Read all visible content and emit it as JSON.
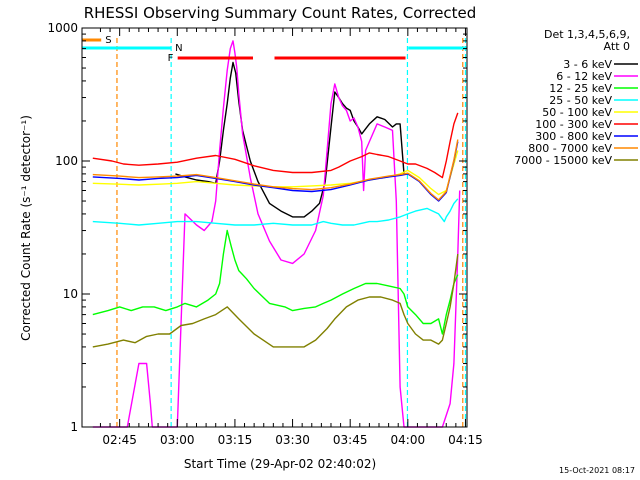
{
  "chart_data": {
    "type": "line",
    "title": "RHESSI Observing Summary Count Rates, Corrected",
    "xlabel": "Start Time (29-Apr-02 02:40:02)",
    "ylabel": "Corrected Count Rate (s⁻¹ detector⁻¹)",
    "y_scale": "log",
    "ylim": [
      1,
      1000
    ],
    "xlim_minutes": [
      -4.8,
      95.4
    ],
    "x_ticks": [
      {
        "m": 5,
        "label": "02:45"
      },
      {
        "m": 20,
        "label": "03:00"
      },
      {
        "m": 35,
        "label": "03:15"
      },
      {
        "m": 50,
        "label": "03:30"
      },
      {
        "m": 65,
        "label": "03:45"
      },
      {
        "m": 80,
        "label": "04:00"
      },
      {
        "m": 95,
        "label": "04:15"
      }
    ],
    "y_ticks": [
      {
        "v": 1,
        "label": "1"
      },
      {
        "v": 10,
        "label": "10"
      },
      {
        "v": 100,
        "label": "100"
      },
      {
        "v": 1000,
        "label": "1000"
      }
    ],
    "legend_header": [
      "Det 1,3,4,5,6,9,",
      "Att 0"
    ],
    "legend_position": "right",
    "timestamp": "15-Oct-2021 08:17",
    "series": [
      {
        "name": "3 - 6 keV",
        "color": "#000000",
        "x": [
          19.5,
          22,
          25,
          28,
          30,
          31,
          32,
          33,
          33.8,
          34.5,
          35.2,
          36,
          37,
          39,
          41,
          44,
          47,
          50,
          53,
          55,
          57,
          58.5,
          60,
          61,
          62,
          63,
          64,
          65,
          66,
          67,
          68,
          70,
          72,
          74,
          76,
          77,
          78,
          79
        ],
        "y": [
          80,
          76,
          72,
          70,
          68,
          100,
          170,
          270,
          420,
          550,
          460,
          280,
          170,
          100,
          70,
          48,
          42,
          38,
          38,
          42,
          48,
          70,
          180,
          330,
          300,
          270,
          250,
          240,
          200,
          180,
          160,
          190,
          215,
          205,
          180,
          190,
          190,
          80
        ]
      },
      {
        "name": "6 - 12 keV",
        "color": "#ff00ff",
        "x": [
          -2,
          4.5,
          7,
          10,
          12,
          13,
          13.5,
          14,
          17,
          20,
          22,
          25,
          27,
          29,
          30,
          31,
          32,
          33,
          33.8,
          34.5,
          35,
          35.5,
          36,
          37,
          39,
          41,
          44,
          47,
          50,
          53,
          56,
          58,
          59,
          60,
          61,
          62,
          63,
          64,
          65,
          66,
          67,
          68,
          68.5,
          69,
          70,
          72,
          74,
          76,
          77,
          78,
          79,
          80,
          86,
          89,
          91,
          92,
          93,
          93.5
        ],
        "y": [
          1,
          1,
          1,
          3,
          3,
          1.5,
          1,
          1,
          1,
          1,
          40,
          33,
          30,
          35,
          50,
          120,
          250,
          480,
          700,
          800,
          650,
          500,
          320,
          160,
          75,
          40,
          25,
          18,
          17,
          20,
          30,
          55,
          120,
          270,
          380,
          300,
          260,
          240,
          200,
          210,
          180,
          140,
          60,
          120,
          140,
          190,
          180,
          170,
          50,
          2,
          1,
          1,
          1,
          1,
          1.5,
          3,
          20,
          60
        ]
      },
      {
        "name": "12 - 25 keV",
        "color": "#00ff00",
        "x": [
          -2,
          2,
          5,
          8,
          11,
          14,
          17,
          20,
          22,
          25,
          28,
          30,
          31,
          32,
          33,
          34,
          35,
          36,
          37,
          38,
          40,
          44,
          48,
          50,
          53,
          56,
          58,
          60,
          63,
          66,
          69,
          72,
          75,
          78,
          79,
          80,
          82,
          84,
          86,
          88,
          89,
          90,
          91,
          92,
          93
        ],
        "y": [
          7,
          7.5,
          8,
          7.5,
          8,
          8,
          7.5,
          8,
          8.5,
          8,
          9,
          10,
          12,
          20,
          30,
          23,
          18,
          15,
          14,
          13,
          11,
          8.5,
          8,
          7.5,
          7.8,
          8,
          8.5,
          9,
          10,
          11,
          12,
          12,
          11.5,
          11,
          10,
          8,
          7,
          6,
          6,
          6.5,
          5,
          7,
          9,
          12,
          14
        ]
      },
      {
        "name": "25 - 50 keV",
        "color": "#00ffff",
        "x": [
          -2,
          5,
          10,
          15,
          20,
          25,
          30,
          35,
          40,
          45,
          50,
          55,
          58,
          60,
          63,
          66,
          68,
          70,
          72,
          75,
          78,
          80,
          82,
          85,
          88,
          89.5,
          90,
          91,
          92,
          93
        ],
        "y": [
          35,
          34,
          33,
          34,
          35,
          35,
          34,
          33,
          33,
          34,
          33,
          33,
          35,
          34,
          33,
          33,
          34,
          35,
          35,
          36,
          38,
          40,
          42,
          44,
          40,
          35,
          38,
          42,
          48,
          52
        ]
      },
      {
        "name": "50 - 100 keV",
        "color": "#ffff00",
        "x": [
          -2,
          4,
          10,
          16,
          20,
          25,
          30,
          35,
          40,
          45,
          50,
          55,
          60,
          65,
          70,
          75,
          78,
          80,
          83,
          86,
          88,
          90,
          92,
          93
        ],
        "y": [
          68,
          67,
          66,
          67,
          68,
          70,
          68,
          66,
          65,
          64,
          64,
          65,
          66,
          68,
          72,
          76,
          80,
          85,
          75,
          62,
          56,
          60,
          95,
          120
        ]
      },
      {
        "name": "100 - 300 keV",
        "color": "#ff0000",
        "x": [
          -2,
          3,
          6,
          10,
          15,
          20,
          25,
          30,
          35,
          40,
          45,
          50,
          55,
          60,
          62,
          65,
          68,
          70,
          72,
          75,
          78,
          80,
          82,
          85,
          87,
          89,
          90,
          91,
          92,
          93
        ],
        "y": [
          105,
          100,
          95,
          93,
          95,
          98,
          105,
          110,
          103,
          92,
          85,
          82,
          82,
          85,
          90,
          100,
          108,
          115,
          112,
          108,
          100,
          95,
          95,
          88,
          82,
          75,
          100,
          140,
          190,
          230
        ]
      },
      {
        "name": "300 - 800 keV",
        "color": "#0000ff",
        "x": [
          -2,
          5,
          10,
          15,
          20,
          25,
          30,
          35,
          40,
          45,
          50,
          55,
          60,
          65,
          70,
          75,
          78,
          80,
          83,
          86,
          88,
          90,
          92,
          93
        ],
        "y": [
          76,
          74,
          72,
          74,
          75,
          78,
          74,
          70,
          66,
          63,
          60,
          59,
          61,
          66,
          72,
          76,
          78,
          80,
          70,
          56,
          50,
          58,
          100,
          140
        ]
      },
      {
        "name": "800 - 7000 keV",
        "color": "#ff8800",
        "x": [
          -2,
          5,
          10,
          15,
          20,
          25,
          30,
          35,
          40,
          45,
          50,
          55,
          60,
          65,
          70,
          75,
          78,
          80,
          83,
          86,
          88,
          90,
          92,
          93
        ],
        "y": [
          79,
          77,
          75,
          76,
          77,
          79,
          75,
          71,
          67,
          64,
          62,
          61,
          63,
          67,
          73,
          77,
          79,
          81,
          71,
          57,
          51,
          59,
          102,
          145
        ]
      },
      {
        "name": "7000 - 15000 keV",
        "color": "#808000",
        "x": [
          -2,
          2,
          6,
          9,
          12,
          15,
          18,
          21,
          24,
          27,
          30,
          33,
          36,
          40,
          45,
          50,
          53,
          56,
          59,
          61,
          64,
          67,
          70,
          73,
          76,
          78,
          79,
          80,
          82,
          84,
          86,
          88,
          89,
          90,
          91,
          92,
          93
        ],
        "y": [
          4,
          4.2,
          4.5,
          4.3,
          4.8,
          5,
          5,
          5.8,
          6,
          6.5,
          7,
          8,
          6.5,
          5,
          4,
          4,
          4,
          4.5,
          5.5,
          6.5,
          8,
          9,
          9.5,
          9.5,
          9,
          8.5,
          7,
          6,
          5,
          4.5,
          4.5,
          4.2,
          4.5,
          6,
          8,
          12,
          20
        ]
      }
    ],
    "flags": [
      {
        "label": "S",
        "color": "#ff8800",
        "segments": [
          [
            -4.8,
            0.2
          ]
        ]
      },
      {
        "label": "N",
        "color": "#00ffff",
        "segments": [
          [
            -4.8,
            18.4
          ],
          [
            80.1,
            95.4
          ]
        ]
      },
      {
        "label": "F",
        "color": "#ff0000",
        "segments": [
          [
            20.1,
            39.7
          ],
          [
            45.3,
            79.4
          ]
        ]
      }
    ],
    "markers": [
      {
        "m": 4.3,
        "color": "#ff8800"
      },
      {
        "m": 18.4,
        "color": "#00ffff"
      },
      {
        "m": 79.9,
        "color": "#00ffff"
      },
      {
        "m": 94.3,
        "color": "#ff8800"
      },
      {
        "m": 95.0,
        "color": "#00ffff"
      }
    ]
  }
}
